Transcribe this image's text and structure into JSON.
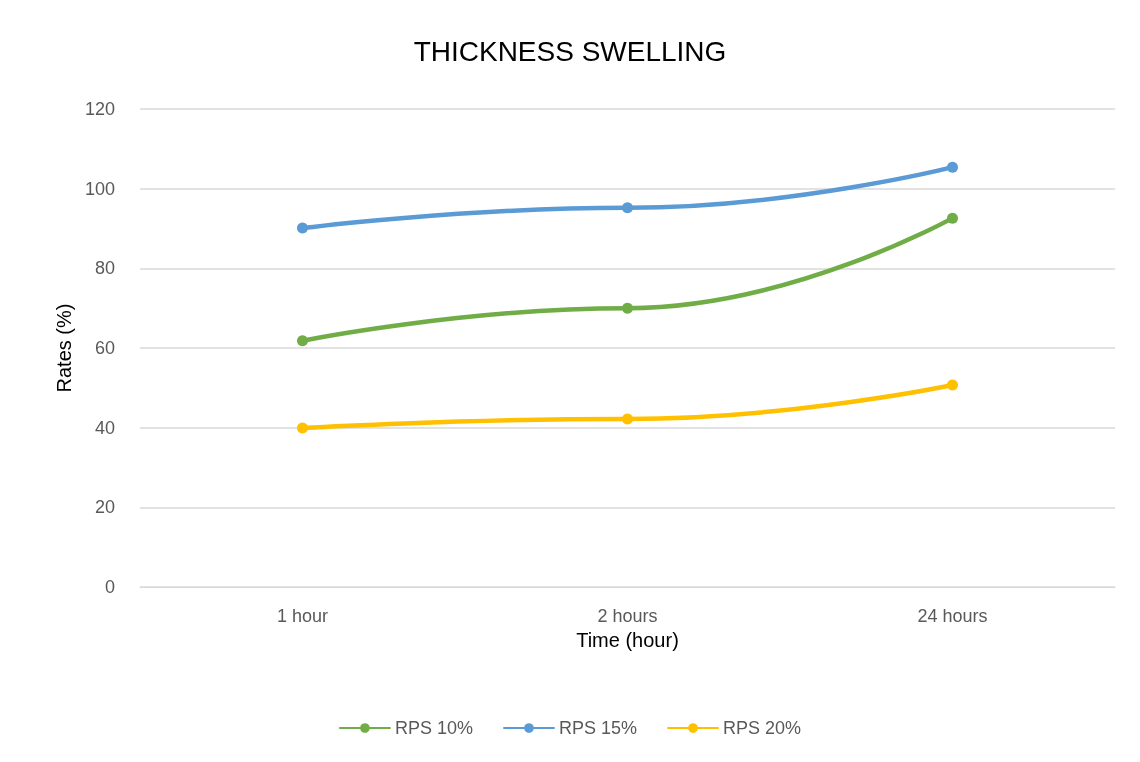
{
  "chart_data": {
    "type": "line",
    "title": "THICKNESS SWELLING",
    "xlabel": "Time (hour)",
    "ylabel": "Rates (%)",
    "categories": [
      "1 hour",
      "2 hours",
      "24 hours"
    ],
    "series": [
      {
        "name": "RPS 10%",
        "color": "#70ad47",
        "values": [
          61.8,
          70,
          92.6
        ]
      },
      {
        "name": "RPS 15%",
        "color": "#5b9bd5",
        "values": [
          90.1,
          95.2,
          105.4
        ]
      },
      {
        "name": "RPS 20%",
        "color": "#ffc000",
        "values": [
          39.9,
          42.2,
          50.7
        ]
      }
    ],
    "ylim": [
      0,
      120
    ],
    "yticks": [
      0,
      20,
      40,
      60,
      80,
      100,
      120
    ],
    "grid": "y",
    "legend": "bottom",
    "marker": "circle",
    "line_style": "solid"
  }
}
